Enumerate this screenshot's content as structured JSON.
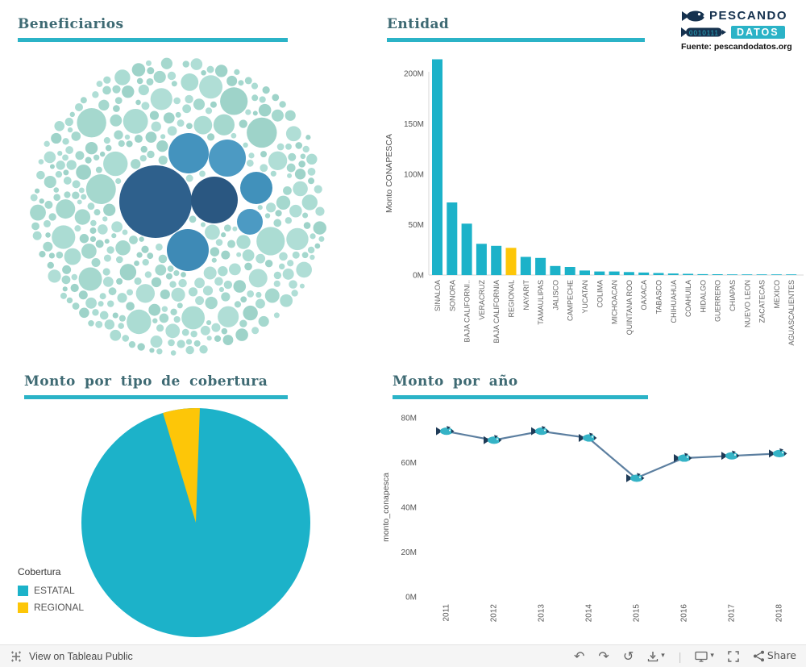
{
  "app": {
    "title": "Pescando Datos dashboard"
  },
  "logo": {
    "word1": "PESCANDO",
    "word2": "DATOS",
    "binary": "0010111",
    "source": "Fuente: pescandodatos.org"
  },
  "panels": {
    "beneficiarios": {
      "title": "Beneficiarios"
    },
    "entidad": {
      "title": "Entidad"
    },
    "cobertura": {
      "title": "Monto por tipo de cobertura",
      "legend_title": "Cobertura",
      "legend": [
        {
          "label": "ESTATAL",
          "color": "#1CB2C9"
        },
        {
          "label": "REGIONAL",
          "color": "#FDC608"
        }
      ]
    },
    "anio": {
      "title": "Monto por año"
    }
  },
  "footer": {
    "view_label": "View on Tableau Public",
    "share_label": "Share"
  },
  "icons": {
    "undo": "↶",
    "redo": "↷",
    "reset": "↺",
    "caret": "▾",
    "separator": "|"
  },
  "colors": {
    "teal": "#1CB2C9",
    "yellow": "#FDC608",
    "title_text": "#3E6A73",
    "underline": "#2BB3C7",
    "line": "#5C7FA0",
    "navy": "#16324F"
  },
  "chart_data": [
    {
      "type": "bubble",
      "panel": "Beneficiarios",
      "note": "Packed-bubble chart of beneficiaries; individual bubbles carry no visible labels or values",
      "small_bubble_colors": [
        "#A5D8CE",
        "#ABDCD3",
        "#9ED3C9",
        "#B0DED6"
      ],
      "cluster": {
        "cx": 212,
        "cy": 196,
        "r": 186
      },
      "highlight_bubbles": [
        {
          "x": 183,
          "y": 190,
          "r": 45,
          "color": "#2E608C"
        },
        {
          "x": 256,
          "y": 188,
          "r": 29,
          "color": "#2A5781"
        },
        {
          "x": 224,
          "y": 130,
          "r": 25,
          "color": "#4493BE"
        },
        {
          "x": 272,
          "y": 136,
          "r": 23,
          "color": "#4C9AC3"
        },
        {
          "x": 308,
          "y": 173,
          "r": 20,
          "color": "#4191BB"
        },
        {
          "x": 223,
          "y": 250,
          "r": 26,
          "color": "#3E8AB6"
        },
        {
          "x": 300,
          "y": 215,
          "r": 16,
          "color": "#4C9AC3"
        }
      ]
    },
    {
      "type": "bar",
      "panel": "Entidad",
      "ylabel": "Monto CONAPESCA",
      "unit": "M",
      "ylim": [
        0,
        215
      ],
      "yticks": [
        0,
        50,
        100,
        150,
        200
      ],
      "bar_color": "#1CB2C9",
      "highlight": {
        "index": 5,
        "label": "REGIONAL",
        "color": "#FDC608"
      },
      "categories": [
        "SINALOA",
        "SONORA",
        "BAJA CALIFORNI..",
        "VERACRUZ",
        "BAJA CALIFORNIA",
        "REGIONAL",
        "NAYARIT",
        "TAMAULIPAS",
        "JALISCO",
        "CAMPECHE",
        "YUCATAN",
        "COLIMA",
        "MICHOACAN",
        "QUINTANA ROO",
        "OAXACA",
        "TABASCO",
        "CHIHUAHUA",
        "COAHUILA",
        "HIDALGO",
        "GUERRERO",
        "CHIAPAS",
        "NUEVO LEON",
        "ZACATECAS",
        "MEXICO",
        "AGUASCALIENTES"
      ],
      "values": [
        214,
        72,
        51,
        31,
        29,
        27,
        18,
        17,
        9,
        8,
        4.5,
        3.5,
        3.5,
        3,
        2.5,
        2,
        1.5,
        1.2,
        0.9,
        0.8,
        0.5,
        0.4,
        0.3,
        0.25,
        0.2
      ]
    },
    {
      "type": "pie",
      "panel": "Monto por tipo de cobertura",
      "legend_title": "Cobertura",
      "labels": [
        "ESTATAL",
        "REGIONAL"
      ],
      "values_pct": [
        94.8,
        5.2
      ],
      "colors": [
        "#1CB2C9",
        "#FDC608"
      ],
      "wedge_end_deg_from_12": 2,
      "legend_position": "bottom-left"
    },
    {
      "type": "line",
      "panel": "Monto por año",
      "ylabel": "monto_conapesca",
      "unit": "M",
      "ylim": [
        0,
        80
      ],
      "yticks": [
        0,
        20,
        40,
        60,
        80
      ],
      "x": [
        "2011",
        "2012",
        "2013",
        "2014",
        "2015",
        "2016",
        "2017",
        "2018"
      ],
      "values": [
        74,
        70,
        74,
        71,
        53,
        62,
        63,
        64
      ],
      "line_color": "#5C7FA0",
      "marker": "fish",
      "marker_colors": {
        "body": "#35B3C6",
        "fins": "#1F3B57"
      }
    }
  ]
}
